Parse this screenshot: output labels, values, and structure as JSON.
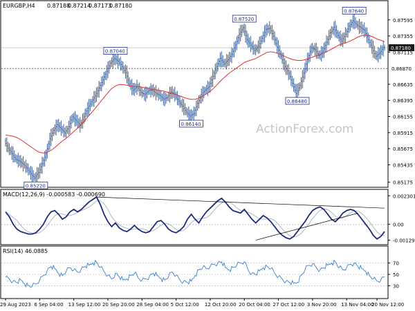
{
  "chart_data": [
    {
      "type": "candlestick",
      "title": "EURGBP,H4",
      "ohlc": {
        "open": "0.87188",
        "high": "0.87214",
        "low": "0.87173",
        "close": "0.87180"
      },
      "y_ticks": [
        "0.87595",
        "0.87355",
        "0.87115",
        "0.86635",
        "0.86395",
        "0.86155",
        "0.85915",
        "0.85675",
        "0.85435",
        "0.85175"
      ],
      "ylim": [
        0.8513,
        0.8785
      ],
      "last_price": "0.87180",
      "h_line_level": "0.86870",
      "moving_average_color": "#e03030",
      "bar_color": "#2a4e8c",
      "watermark": "ActionForex.com",
      "series_close": [
        0.8579,
        0.8568,
        0.856,
        0.8552,
        0.8549,
        0.8544,
        0.8538,
        0.853,
        0.8524,
        0.8532,
        0.8545,
        0.856,
        0.8582,
        0.8595,
        0.8603,
        0.8597,
        0.8591,
        0.86,
        0.8615,
        0.8609,
        0.8602,
        0.8615,
        0.8628,
        0.8637,
        0.8646,
        0.8658,
        0.867,
        0.8683,
        0.8695,
        0.8702,
        0.8698,
        0.869,
        0.8681,
        0.8664,
        0.8655,
        0.866,
        0.8652,
        0.8648,
        0.8654,
        0.8655,
        0.865,
        0.8647,
        0.8641,
        0.8644,
        0.8652,
        0.8648,
        0.8638,
        0.8631,
        0.8622,
        0.8616,
        0.862,
        0.8635,
        0.8648,
        0.8655,
        0.866,
        0.8675,
        0.869,
        0.8702,
        0.8694,
        0.87,
        0.8708,
        0.8722,
        0.8738,
        0.8748,
        0.873,
        0.8722,
        0.8714,
        0.872,
        0.8732,
        0.8745,
        0.8747,
        0.8735,
        0.8719,
        0.8705,
        0.869,
        0.868,
        0.8665,
        0.865,
        0.8662,
        0.868,
        0.87,
        0.8718,
        0.8715,
        0.8706,
        0.8712,
        0.8726,
        0.874,
        0.8748,
        0.8736,
        0.8728,
        0.8738,
        0.875,
        0.8758,
        0.8752,
        0.8748,
        0.8744,
        0.873,
        0.8718,
        0.8705,
        0.871,
        0.8718
      ],
      "series_ma": [
        0.8588,
        0.8587,
        0.8586,
        0.8584,
        0.8581,
        0.8577,
        0.8573,
        0.8569,
        0.8565,
        0.8562,
        0.8561,
        0.8562,
        0.8565,
        0.8569,
        0.8574,
        0.8579,
        0.8583,
        0.8588,
        0.8593,
        0.8598,
        0.8604,
        0.861,
        0.8617,
        0.8623,
        0.863,
        0.8637,
        0.8644,
        0.8651,
        0.8657,
        0.8661,
        0.8663,
        0.8663,
        0.8662,
        0.8661,
        0.866,
        0.866,
        0.8659,
        0.8658,
        0.8657,
        0.8656,
        0.8655,
        0.8654,
        0.8653,
        0.8651,
        0.865,
        0.8648,
        0.8646,
        0.8644,
        0.8642,
        0.8641,
        0.8641,
        0.8643,
        0.8646,
        0.8649,
        0.8653,
        0.8658,
        0.8664,
        0.867,
        0.8675,
        0.868,
        0.8684,
        0.8688,
        0.8692,
        0.8696,
        0.8698,
        0.87,
        0.8702,
        0.8705,
        0.8708,
        0.8711,
        0.8712,
        0.8711,
        0.8709,
        0.8707,
        0.8704,
        0.8702,
        0.87,
        0.8699,
        0.8699,
        0.87,
        0.8702,
        0.8704,
        0.8706,
        0.8708,
        0.871,
        0.8713,
        0.8716,
        0.8719,
        0.8722,
        0.8724,
        0.8726,
        0.8728,
        0.8731,
        0.8734,
        0.8736,
        0.8737,
        0.8736,
        0.8734,
        0.8731,
        0.8729,
        0.8727
      ],
      "annotations": [
        {
          "label": "0.85220",
          "index": 8,
          "value": 0.8522
        },
        {
          "label": "0.87040",
          "index": 29,
          "value": 0.8704
        },
        {
          "label": "0.86140",
          "index": 49,
          "value": 0.8614
        },
        {
          "label": "0.87520",
          "index": 63,
          "value": 0.8752
        },
        {
          "label": "0.86480",
          "index": 77,
          "value": 0.8648
        },
        {
          "label": "0.87640",
          "index": 92,
          "value": 0.8764
        }
      ]
    },
    {
      "type": "line",
      "title": "MACD(12,26,9) -0.000583 -0.000690",
      "y_ticks": [
        "0.002301",
        "0.00",
        "-0.001295"
      ],
      "ylim": [
        -0.00155,
        0.0026
      ],
      "macd": [
        0.001,
        0.0006,
        0.0,
        -0.0004,
        -0.0006,
        -0.0007,
        -0.0008,
        -0.0008,
        -0.0007,
        -0.0004,
        0.0,
        0.0006,
        0.001,
        0.0011,
        0.0008,
        0.0004,
        0.0006,
        0.001,
        0.0012,
        0.001,
        0.0012,
        0.0015,
        0.0018,
        0.002,
        0.0022,
        0.0016,
        0.0008,
        0.0002,
        -0.0002,
        0.0001,
        -0.0003,
        -0.0005,
        -0.0006,
        -0.0004,
        -0.0001,
        -0.0004,
        -0.0006,
        -0.0007,
        -0.0006,
        -0.0002,
        0.0002,
        0.0003,
        0.0,
        -0.0004,
        -0.0006,
        -0.0007,
        -0.0005,
        -0.0002,
        0.0004,
        0.0008,
        0.0004,
        0.0001,
        0.0006,
        0.001,
        0.0013,
        0.0016,
        0.0019,
        0.0021,
        0.0018,
        0.0014,
        0.0011,
        0.001,
        0.0009,
        0.0012,
        0.0008,
        0.0004,
        0.0001,
        0.0004,
        0.0007,
        0.0005,
        0.0002,
        -0.0002,
        -0.0006,
        -0.0009,
        -0.0011,
        -0.0012,
        -0.001,
        -0.0006,
        -0.0002,
        0.0002,
        0.0007,
        0.0011,
        0.0013,
        0.0014,
        0.0012,
        0.0008,
        0.0004,
        0.0002,
        0.0005,
        0.0009,
        0.0011,
        0.0012,
        0.0011,
        0.0008,
        0.0004,
        0.0,
        -0.0004,
        -0.0009,
        -0.0012,
        -0.001,
        -0.0006
      ],
      "signal_color": "#b0b4c8",
      "macd_color": "#1c2a7a",
      "trend_lines": [
        {
          "from": [
            24,
            0.0022
          ],
          "to": [
            100,
            0.0013
          ]
        },
        {
          "from": [
            66,
            -0.0013
          ],
          "to": [
            93,
            0.0009
          ]
        }
      ]
    },
    {
      "type": "line",
      "title": "RSI(14) 46.0885",
      "y_ticks": [
        "70",
        "50",
        "30"
      ],
      "ylim": [
        10,
        95
      ],
      "levels": [
        70,
        50,
        30
      ],
      "rsi": [
        45,
        42,
        38,
        36,
        40,
        34,
        30,
        29,
        33,
        40,
        48,
        57,
        64,
        60,
        52,
        48,
        55,
        62,
        58,
        54,
        60,
        64,
        66,
        70,
        72,
        62,
        55,
        48,
        42,
        52,
        46,
        40,
        42,
        48,
        52,
        44,
        40,
        42,
        47,
        52,
        48,
        43,
        40,
        46,
        54,
        48,
        40,
        38,
        36,
        38,
        48,
        58,
        62,
        60,
        64,
        68,
        70,
        72,
        62,
        58,
        62,
        66,
        70,
        72,
        58,
        52,
        50,
        56,
        62,
        64,
        60,
        52,
        46,
        42,
        38,
        36,
        34,
        36,
        48,
        58,
        66,
        68,
        62,
        58,
        62,
        66,
        70,
        72,
        62,
        58,
        62,
        68,
        70,
        64,
        60,
        56,
        48,
        42,
        38,
        40,
        46
      ],
      "line_color": "#3a7fd0"
    }
  ],
  "x_axis": {
    "labels": [
      "29 Aug 2023",
      "6 Sep 04:00",
      "13 Sep 12:00",
      "20 Sep 20:00",
      "28 Sep 04:00",
      "5 Oct 12:00",
      "12 Oct 20:00",
      "20 Oct 04:00",
      "27 Oct 12:00",
      "3 Nov 20:00",
      "13 Nov 04:00",
      "20 Nov 12:00"
    ],
    "label_indices": [
      0,
      9,
      18,
      27,
      36,
      45,
      54,
      63,
      72,
      81,
      90,
      98
    ]
  }
}
